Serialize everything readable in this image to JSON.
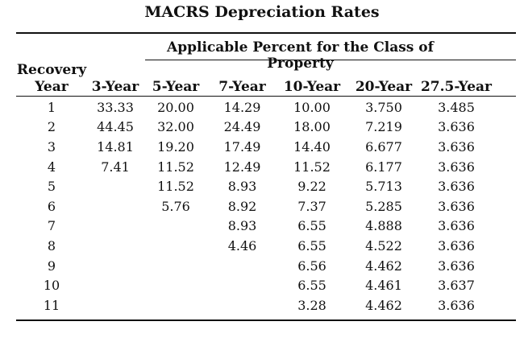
{
  "title": "MACRS Depreciation Rates",
  "subtitle": "Applicable Percent for the Class of Property",
  "recovery_label": "Recovery",
  "year_label": "Year",
  "columns": [
    "3-Year",
    "5-Year",
    "7-Year",
    "10-Year",
    "20-Year",
    "27.5-Year"
  ],
  "rows": [
    [
      "1",
      "33.33",
      "20.00",
      "14.29",
      "10.00",
      "3.750",
      "3.485"
    ],
    [
      "2",
      "44.45",
      "32.00",
      "24.49",
      "18.00",
      "7.219",
      "3.636"
    ],
    [
      "3",
      "14.81",
      "19.20",
      "17.49",
      "14.40",
      "6.677",
      "3.636"
    ],
    [
      "4",
      "7.41",
      "11.52",
      "12.49",
      "11.52",
      "6.177",
      "3.636"
    ],
    [
      "5",
      "",
      "11.52",
      "8.93",
      "9.22",
      "5.713",
      "3.636"
    ],
    [
      "6",
      "",
      "5.76",
      "8.92",
      "7.37",
      "5.285",
      "3.636"
    ],
    [
      "7",
      "",
      "",
      "8.93",
      "6.55",
      "4.888",
      "3.636"
    ],
    [
      "8",
      "",
      "",
      "4.46",
      "6.55",
      "4.522",
      "3.636"
    ],
    [
      "9",
      "",
      "",
      "",
      "6.56",
      "4.462",
      "3.636"
    ],
    [
      "10",
      "",
      "",
      "",
      "6.55",
      "4.461",
      "3.637"
    ],
    [
      "11",
      "",
      "",
      "",
      "3.28",
      "4.462",
      "3.636"
    ]
  ]
}
